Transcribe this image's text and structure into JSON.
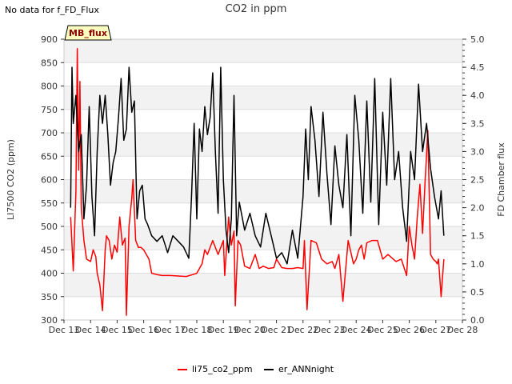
{
  "note": "No data for f_FD_Flux",
  "chart_data": {
    "type": "line",
    "title": "CO2 in ppm",
    "badge": "MB_flux",
    "ylabel_left": "LI7500 CO2 (ppm)",
    "ylabel_right": "FD Chamber flux",
    "ylim_left": [
      300,
      900
    ],
    "ylim_right": [
      0.0,
      5.0
    ],
    "xlim": [
      13,
      28
    ],
    "x_tick_labels": [
      "Dec 13",
      "Dec 14",
      "Dec 15",
      "Dec 16",
      "Dec 17",
      "Dec 18",
      "Dec 19",
      "Dec 20",
      "Dec 21",
      "Dec 22",
      "Dec 23",
      "Dec 24",
      "Dec 25",
      "Dec 26",
      "Dec 27",
      "Dec 28"
    ],
    "y_tick_labels_left": [
      "300",
      "350",
      "400",
      "450",
      "500",
      "550",
      "600",
      "650",
      "700",
      "750",
      "800",
      "850",
      "900"
    ],
    "y_tick_labels_right": [
      "0.0",
      "0.5",
      "1.0",
      "1.5",
      "2.0",
      "2.5",
      "3.0",
      "3.5",
      "4.0",
      "4.5",
      "5.0"
    ],
    "series": [
      {
        "name": "li75_co2_ppm",
        "color": "#ff0000",
        "axis": "left",
        "x": [
          13.25,
          13.35,
          13.45,
          13.5,
          13.55,
          13.6,
          13.65,
          13.75,
          13.85,
          14.0,
          14.1,
          14.2,
          14.25,
          14.35,
          14.45,
          14.5,
          14.55,
          14.6,
          14.7,
          14.8,
          14.9,
          15.0,
          15.1,
          15.2,
          15.3,
          15.35,
          15.45,
          15.55,
          15.6,
          15.7,
          15.8,
          15.9,
          16.0,
          16.1,
          16.2,
          16.3,
          16.5,
          16.7,
          16.9,
          17.0,
          17.3,
          17.6,
          17.9,
          18.0,
          18.2,
          18.3,
          18.4,
          18.6,
          18.8,
          19.0,
          19.05,
          19.15,
          19.2,
          19.3,
          19.4,
          19.45,
          19.55,
          19.65,
          19.8,
          20.0,
          20.2,
          20.35,
          20.5,
          20.7,
          20.9,
          21.0,
          21.2,
          21.4,
          21.6,
          21.8,
          22.0,
          22.05,
          22.15,
          22.3,
          22.5,
          22.7,
          22.9,
          23.1,
          23.2,
          23.35,
          23.5,
          23.7,
          23.9,
          24.0,
          24.1,
          24.2,
          24.3,
          24.4,
          24.6,
          24.8,
          25.0,
          25.2,
          25.5,
          25.7,
          25.9,
          26.0,
          26.1,
          26.2,
          26.3,
          26.4,
          26.5,
          26.6,
          26.7,
          26.8,
          26.9,
          27.0,
          27.05,
          27.1,
          27.2,
          27.3
        ],
        "y": [
          520,
          405,
          575,
          880,
          620,
          810,
          540,
          470,
          430,
          425,
          450,
          435,
          400,
          375,
          320,
          385,
          450,
          480,
          470,
          430,
          460,
          445,
          520,
          460,
          475,
          310,
          500,
          560,
          600,
          470,
          455,
          455,
          450,
          440,
          430,
          400,
          397,
          395,
          395,
          395,
          394,
          393,
          398,
          400,
          420,
          450,
          440,
          470,
          440,
          470,
          395,
          480,
          520,
          460,
          490,
          330,
          470,
          460,
          415,
          410,
          440,
          410,
          415,
          410,
          412,
          430,
          412,
          410,
          410,
          412,
          410,
          470,
          322,
          470,
          465,
          430,
          420,
          425,
          410,
          440,
          340,
          470,
          420,
          430,
          450,
          460,
          430,
          465,
          470,
          470,
          430,
          440,
          425,
          430,
          395,
          500,
          460,
          430,
          520,
          590,
          485,
          600,
          705,
          440,
          430,
          425,
          420,
          430,
          350,
          430
        ],
        "note": "values approximate, read from gridlines"
      },
      {
        "name": "er_ANNnight",
        "color": "#000000",
        "axis": "right",
        "x": [
          13.25,
          13.3,
          13.35,
          13.45,
          13.55,
          13.65,
          13.75,
          13.85,
          13.95,
          14.05,
          14.15,
          14.25,
          14.35,
          14.45,
          14.55,
          14.65,
          14.75,
          14.85,
          14.95,
          15.05,
          15.15,
          15.25,
          15.35,
          15.45,
          15.55,
          15.65,
          15.75,
          15.85,
          15.95,
          16.05,
          16.15,
          16.3,
          16.5,
          16.7,
          16.9,
          17.1,
          17.3,
          17.5,
          17.7,
          17.8,
          17.9,
          18.0,
          18.1,
          18.2,
          18.3,
          18.4,
          18.5,
          18.6,
          18.7,
          18.8,
          18.9,
          19.0,
          19.1,
          19.2,
          19.3,
          19.4,
          19.5,
          19.6,
          19.8,
          20.0,
          20.2,
          20.4,
          20.6,
          20.8,
          21.0,
          21.2,
          21.4,
          21.6,
          21.8,
          22.0,
          22.1,
          22.2,
          22.3,
          22.45,
          22.6,
          22.75,
          22.9,
          23.05,
          23.2,
          23.35,
          23.5,
          23.65,
          23.8,
          23.95,
          24.1,
          24.25,
          24.4,
          24.55,
          24.7,
          24.85,
          25.0,
          25.15,
          25.3,
          25.45,
          25.6,
          25.75,
          25.9,
          26.05,
          26.2,
          26.35,
          26.5,
          26.65,
          26.8,
          26.95,
          27.1,
          27.2,
          27.3
        ],
        "y": [
          2.0,
          4.5,
          3.5,
          4.0,
          3.0,
          3.3,
          1.8,
          2.4,
          3.8,
          2.2,
          1.5,
          3.0,
          4.0,
          3.5,
          4.0,
          3.3,
          2.4,
          2.8,
          3.0,
          3.6,
          4.3,
          3.2,
          3.4,
          4.5,
          3.7,
          3.9,
          1.8,
          2.3,
          2.4,
          1.8,
          1.7,
          1.5,
          1.4,
          1.5,
          1.2,
          1.5,
          1.4,
          1.3,
          1.1,
          2.2,
          3.5,
          1.8,
          3.4,
          3.0,
          3.8,
          3.3,
          3.6,
          4.4,
          3.0,
          1.9,
          4.5,
          2.5,
          1.6,
          1.2,
          1.8,
          4.0,
          1.5,
          2.1,
          1.6,
          1.9,
          1.5,
          1.3,
          1.9,
          1.5,
          1.1,
          1.2,
          1.0,
          1.6,
          1.1,
          2.2,
          3.4,
          2.5,
          3.8,
          3.2,
          2.2,
          3.7,
          2.6,
          1.7,
          3.1,
          2.4,
          2.0,
          3.3,
          1.5,
          4.0,
          3.2,
          1.9,
          3.9,
          2.1,
          4.3,
          1.7,
          3.7,
          2.4,
          4.3,
          2.5,
          3.0,
          2.0,
          1.4,
          3.0,
          2.5,
          4.2,
          3.0,
          3.5,
          2.7,
          2.2,
          1.8,
          2.3,
          1.5
        ],
        "note": "values approximate, read from gridlines"
      }
    ],
    "legend": [
      {
        "label": "li75_co2_ppm",
        "color": "#ff0000"
      },
      {
        "label": "er_ANNnight",
        "color": "#000000"
      }
    ]
  }
}
